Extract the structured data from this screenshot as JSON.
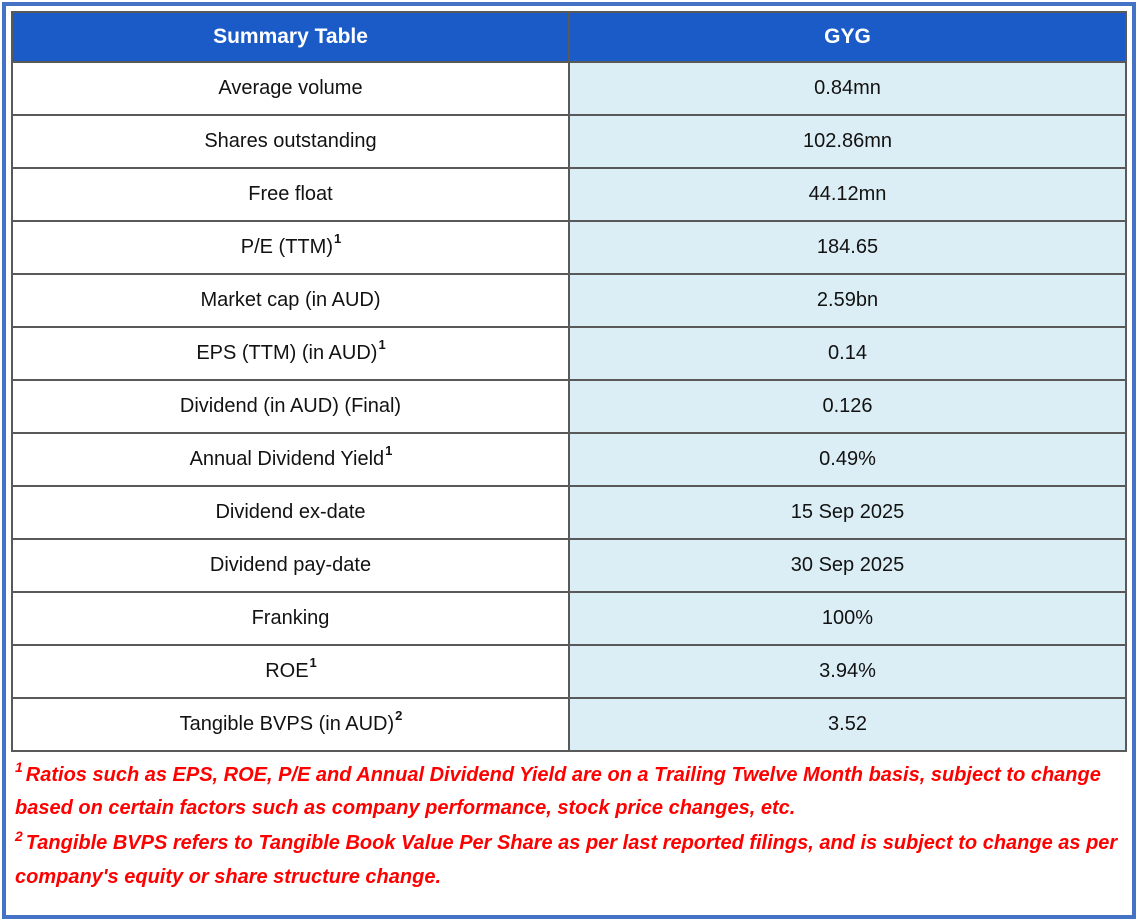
{
  "table": {
    "header": {
      "col1": "Summary Table",
      "col2": "GYG"
    },
    "rows": [
      {
        "label": "Average volume",
        "sup": "",
        "value": "0.84mn"
      },
      {
        "label": "Shares outstanding",
        "sup": "",
        "value": "102.86mn"
      },
      {
        "label": "Free float",
        "sup": "",
        "value": "44.12mn"
      },
      {
        "label": "P/E (TTM)",
        "sup": "1",
        "value": "184.65"
      },
      {
        "label": "Market cap (in AUD)",
        "sup": "",
        "value": "2.59bn"
      },
      {
        "label": "EPS (TTM) (in AUD)",
        "sup": "1",
        "value": "0.14"
      },
      {
        "label": "Dividend (in AUD) (Final)",
        "sup": "",
        "value": "0.126"
      },
      {
        "label": "Annual Dividend Yield",
        "sup": "1",
        "value": "0.49%"
      },
      {
        "label": "Dividend ex-date",
        "sup": "",
        "value": "15 Sep 2025"
      },
      {
        "label": "Dividend pay-date",
        "sup": "",
        "value": "30 Sep 2025"
      },
      {
        "label": "Franking",
        "sup": "",
        "value": "100%"
      },
      {
        "label": "ROE",
        "sup": "1",
        "value": "3.94%"
      },
      {
        "label": "Tangible BVPS (in AUD)",
        "sup": "2",
        "value": "3.52"
      }
    ]
  },
  "footnotes": [
    {
      "sup": "1",
      "text": "Ratios such as EPS, ROE, P/E and Annual Dividend Yield are on a Trailing Twelve Month basis, subject to change based on certain factors such as company performance, stock price changes, etc."
    },
    {
      "sup": "2",
      "text": "Tangible BVPS refers to Tangible Book Value Per Share as per last reported filings, and is subject to change as per company's equity or share structure change."
    }
  ],
  "colors": {
    "header_bg": "#1A5BC8",
    "header_text": "#FFFFFF",
    "value_cell_bg": "#DCEEF5",
    "cell_border": "#595959",
    "frame_border": "#4472C4",
    "footnote_text": "#FF0000",
    "body_text": "#121212"
  }
}
